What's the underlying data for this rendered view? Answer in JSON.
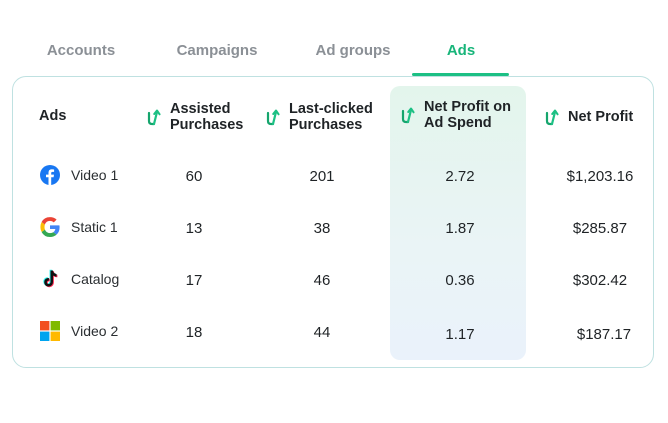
{
  "tabs": [
    {
      "label": "Accounts",
      "active": false
    },
    {
      "label": "Campaigns",
      "active": false
    },
    {
      "label": "Ad groups",
      "active": false
    },
    {
      "label": "Ads",
      "active": true
    }
  ],
  "colors": {
    "accent": "#1cc084",
    "card_border": "#bfe1e1",
    "highlight_top": "#e3f5ec",
    "highlight_bottom": "#eaf2fb"
  },
  "table": {
    "headers": {
      "ads": "Ads",
      "assisted_line1": "Assisted",
      "assisted_line2": "Purchases",
      "last_line1": "Last-clicked",
      "last_line2": "Purchases",
      "npoas_line1": "Net Profit on",
      "npoas_line2": "Ad Spend",
      "net_profit": "Net Profit"
    },
    "header_icon": "trend-arrow-icon",
    "rows": [
      {
        "icon": "facebook-icon",
        "ad": "Video 1",
        "assisted": "60",
        "last_clicked": "201",
        "npoas": "2.72",
        "net_profit": "$1,203.16"
      },
      {
        "icon": "google-icon",
        "ad": "Static 1",
        "assisted": "13",
        "last_clicked": "38",
        "npoas": "1.87",
        "net_profit": "$285.87"
      },
      {
        "icon": "tiktok-icon",
        "ad": "Catalog",
        "assisted": "17",
        "last_clicked": "46",
        "npoas": "0.36",
        "net_profit": "$302.42"
      },
      {
        "icon": "microsoft-icon",
        "ad": "Video 2",
        "assisted": "18",
        "last_clicked": "44",
        "npoas": "1.17",
        "net_profit": "$187.17"
      }
    ]
  }
}
